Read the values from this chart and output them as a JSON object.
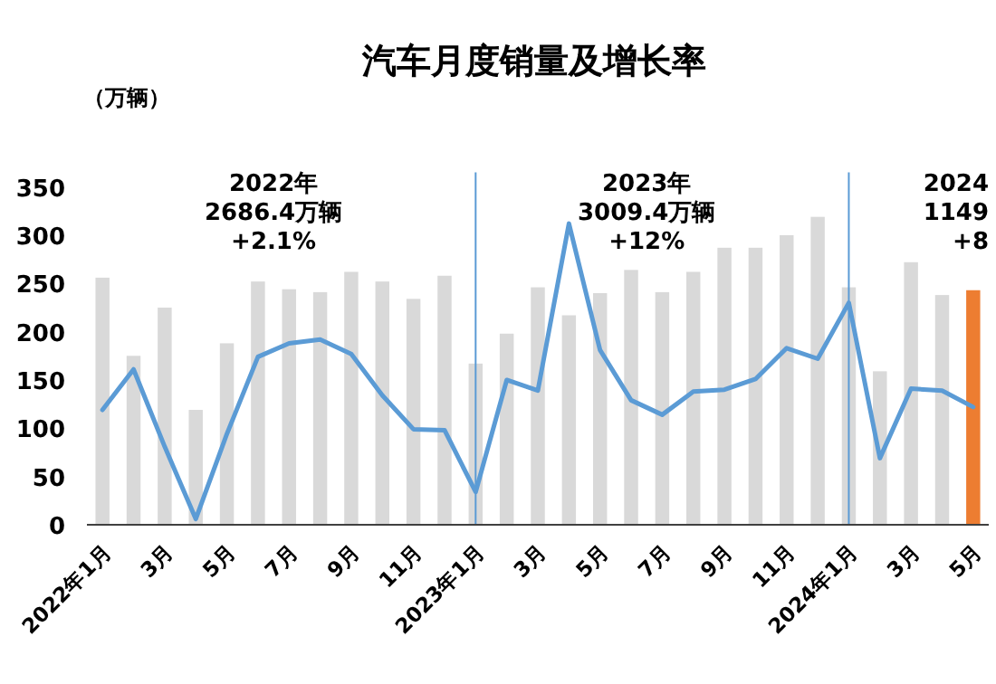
{
  "chart_data": {
    "type": "bar",
    "title": "汽车月度销量及增长率",
    "ylabel": "（万辆）",
    "categories": [
      "2022年1月",
      null,
      "3月",
      null,
      "5月",
      null,
      "7月",
      null,
      "9月",
      null,
      "11月",
      null,
      "2023年1月",
      null,
      "3月",
      null,
      "5月",
      null,
      "7月",
      null,
      "9月",
      null,
      "11月",
      null,
      "2024年1月",
      null,
      "3月",
      null,
      "5月"
    ],
    "series": [
      {
        "colors": [
          "#d9d9d9",
          "#d9d9d9",
          "#d9d9d9",
          "#d9d9d9",
          "#d9d9d9",
          "#d9d9d9",
          "#d9d9d9",
          "#d9d9d9",
          "#d9d9d9",
          "#d9d9d9",
          "#d9d9d9",
          "#d9d9d9",
          "#d9d9d9",
          "#d9d9d9",
          "#d9d9d9",
          "#d9d9d9",
          "#d9d9d9",
          "#d9d9d9",
          "#d9d9d9",
          "#d9d9d9",
          "#d9d9d9",
          "#d9d9d9",
          "#d9d9d9",
          "#d9d9d9",
          "#d9d9d9",
          "#d9d9d9",
          "#d9d9d9",
          "#d9d9d9",
          "#ed7d31"
        ],
        "values": [
          256,
          175,
          225,
          119,
          188,
          252,
          244,
          241,
          262,
          252,
          234,
          258,
          167,
          198,
          246,
          217,
          240,
          264,
          241,
          262,
          287,
          287,
          300,
          319,
          246,
          159,
          272,
          238,
          243
        ]
      },
      {
        "type": "line",
        "color": "#5b9bd5",
        "values": [
          119,
          161,
          81,
          6,
          94,
          174,
          188,
          192,
          177,
          134,
          99,
          98,
          34,
          150,
          139,
          312,
          181,
          129,
          114,
          138,
          140,
          151,
          183,
          172,
          230,
          69,
          141,
          139,
          122
        ]
      }
    ],
    "ylim": [
      0,
      350
    ],
    "yticks": [
      0,
      50,
      100,
      150,
      200,
      250,
      300,
      350
    ],
    "ref_lines": [
      {
        "axis": "x",
        "value": "2023年1月",
        "color": "#5b9bd5"
      },
      {
        "axis": "x",
        "value": "2024年1月",
        "color": "#5b9bd5"
      }
    ],
    "annotations": [
      "2022年\n2686.4万辆\n+2.1%",
      "2023年\n3009.4万辆\n+12%",
      "2024\n1149\n+8"
    ]
  }
}
